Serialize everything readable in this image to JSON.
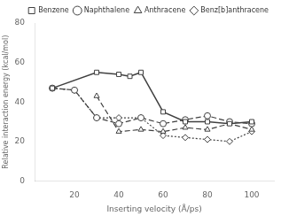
{
  "chart_data": {
    "type": "line",
    "xlabel": "Inserting velocity (Å/ps)",
    "ylabel": "Relative interaction energy (kcal/mol)",
    "series": [
      {
        "name": "Benzene",
        "color": "#404040",
        "marker": "square",
        "line_style": "solid",
        "x": [
          10,
          30,
          40,
          45,
          50,
          60,
          70,
          80,
          90,
          100
        ],
        "values": [
          47,
          55,
          54,
          53,
          55,
          35,
          30,
          30,
          29,
          30
        ]
      },
      {
        "name": "Naphthalene",
        "color": "#404040",
        "marker": "circle",
        "line_style": "dashed",
        "x": [
          10,
          20,
          30,
          40,
          50,
          60,
          70,
          80,
          90,
          100
        ],
        "values": [
          47,
          46,
          32,
          29,
          32,
          29,
          31,
          33,
          30,
          29
        ]
      },
      {
        "name": "Anthracene",
        "color": "#404040",
        "marker": "triangle",
        "line_style": "dashed",
        "x": [
          30,
          40,
          50,
          60,
          70,
          80,
          90,
          100
        ],
        "values": [
          43,
          25,
          26,
          25,
          27,
          26,
          29,
          26
        ]
      },
      {
        "name": "Benz[b]anthracene",
        "color": "#404040",
        "marker": "diamond",
        "line_style": "dotted",
        "x": [
          10,
          20,
          30,
          40,
          50,
          60,
          70,
          80,
          90,
          100
        ],
        "values": [
          47,
          46,
          32,
          32,
          32,
          23,
          22,
          21,
          20,
          25
        ]
      }
    ],
    "xlim": [
      2,
      110
    ],
    "ylim": [
      0,
      80
    ],
    "xticks": [
      20,
      40,
      60,
      80,
      100
    ],
    "yticks": [
      0,
      20,
      40,
      60,
      80
    ],
    "grid": false,
    "legend": "upper right"
  }
}
